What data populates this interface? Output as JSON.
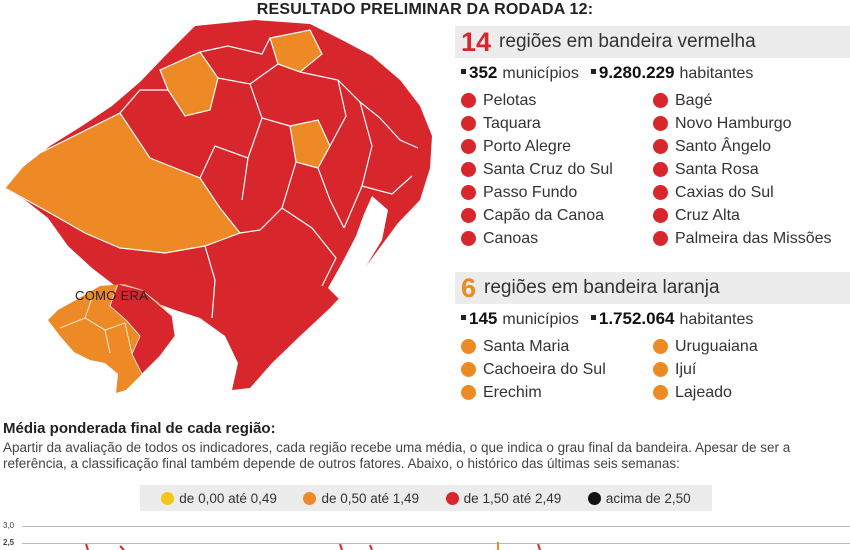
{
  "title": "RESULTADO PRELIMINAR DA RODADA 12:",
  "map": {
    "inset_label": "COMO ERA"
  },
  "red_panel": {
    "count": "14",
    "label": "regiões em bandeira vermelha",
    "municipios_num": "352",
    "municipios_label": "municípios",
    "habitantes_num": "9.280.229",
    "habitantes_label": "habitantes",
    "color": "#d7262c",
    "regions": [
      "Pelotas",
      "Bagé",
      "Taquara",
      "Novo Hamburgo",
      "Porto Alegre",
      "Santo Ângelo",
      "Santa Cruz do Sul",
      "Santa Rosa",
      "Passo Fundo",
      "Caxias do Sul",
      "Capão da Canoa",
      "Cruz Alta",
      "Canoas",
      "Palmeira das Missões"
    ]
  },
  "orange_panel": {
    "count": "6",
    "label": "regiões em bandeira laranja",
    "municipios_num": "145",
    "municipios_label": "municípios",
    "habitantes_num": "1.752.064",
    "habitantes_label": "habitantes",
    "color": "#ee8a26",
    "regions": [
      "Santa Maria",
      "Uruguaiana",
      "Cachoeira do Sul",
      "Ijuí",
      "Erechim",
      "Lajeado"
    ]
  },
  "media": {
    "title": "Média ponderada final de cada região:",
    "text": "Apartir da avaliação de todos os indicadores, cada região recebe uma média, o que indica o grau final da bandeira. Apesar de ser a referência, a classificação final também depende de outros fatores. Abaixo, o histórico das últimas seis semanas:"
  },
  "legend": [
    {
      "label": "de 0,00 até 0,49",
      "color": "#f5c518"
    },
    {
      "label": "de 0,50 até 1,49",
      "color": "#ee8a26"
    },
    {
      "label": "de 1,50 até 2,49",
      "color": "#d7262c"
    },
    {
      "label": "acima de 2,50",
      "color": "#111111"
    }
  ],
  "axis": {
    "top_label": "3,0",
    "mid_label": "2,5"
  }
}
